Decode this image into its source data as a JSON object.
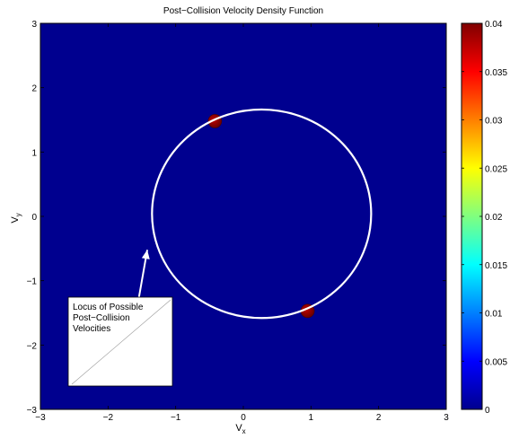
{
  "chart_data": {
    "type": "heatmap",
    "title": "Post−Collision Velocity Density Function",
    "xlabel": {
      "main": "V",
      "sub": "x"
    },
    "ylabel": {
      "main": "V",
      "sub": "y"
    },
    "xlim": [
      -3,
      3
    ],
    "ylim": [
      -3,
      3
    ],
    "xticks": [
      -3,
      -2,
      -1,
      0,
      1,
      2,
      3
    ],
    "xtick_labels": [
      "−3",
      "−2",
      "−1",
      "0",
      "1",
      "2",
      "3"
    ],
    "yticks": [
      -3,
      -2,
      -1,
      0,
      1,
      2,
      3
    ],
    "ytick_labels": [
      "−3",
      "−2",
      "−1",
      "0",
      "1",
      "2",
      "3"
    ],
    "background_color": "#00008F",
    "colorbar": {
      "clim": [
        0,
        0.04
      ],
      "ticks": [
        0,
        0.005,
        0.01,
        0.015,
        0.02,
        0.025,
        0.03,
        0.035,
        0.04
      ],
      "tick_labels": [
        "0",
        "0.005",
        "0.01",
        "0.015",
        "0.02",
        "0.025",
        "0.03",
        "0.035",
        "0.04"
      ],
      "colormap": "jet"
    },
    "circle": {
      "center": [
        0.27,
        0.04
      ],
      "radius": 1.62,
      "color": "#ffffff"
    },
    "hotspots": [
      {
        "x": -0.42,
        "y": 1.48,
        "color": "#8a0000"
      },
      {
        "x": 0.95,
        "y": -1.47,
        "color": "#8a0000"
      }
    ],
    "annotation": {
      "lines": [
        "Locus of Possible",
        "Post−Collision",
        "Velocities"
      ],
      "arrow_tail": [
        -1.55,
        -1.3
      ],
      "arrow_head": [
        -1.42,
        -0.52
      ]
    },
    "grid": false
  }
}
